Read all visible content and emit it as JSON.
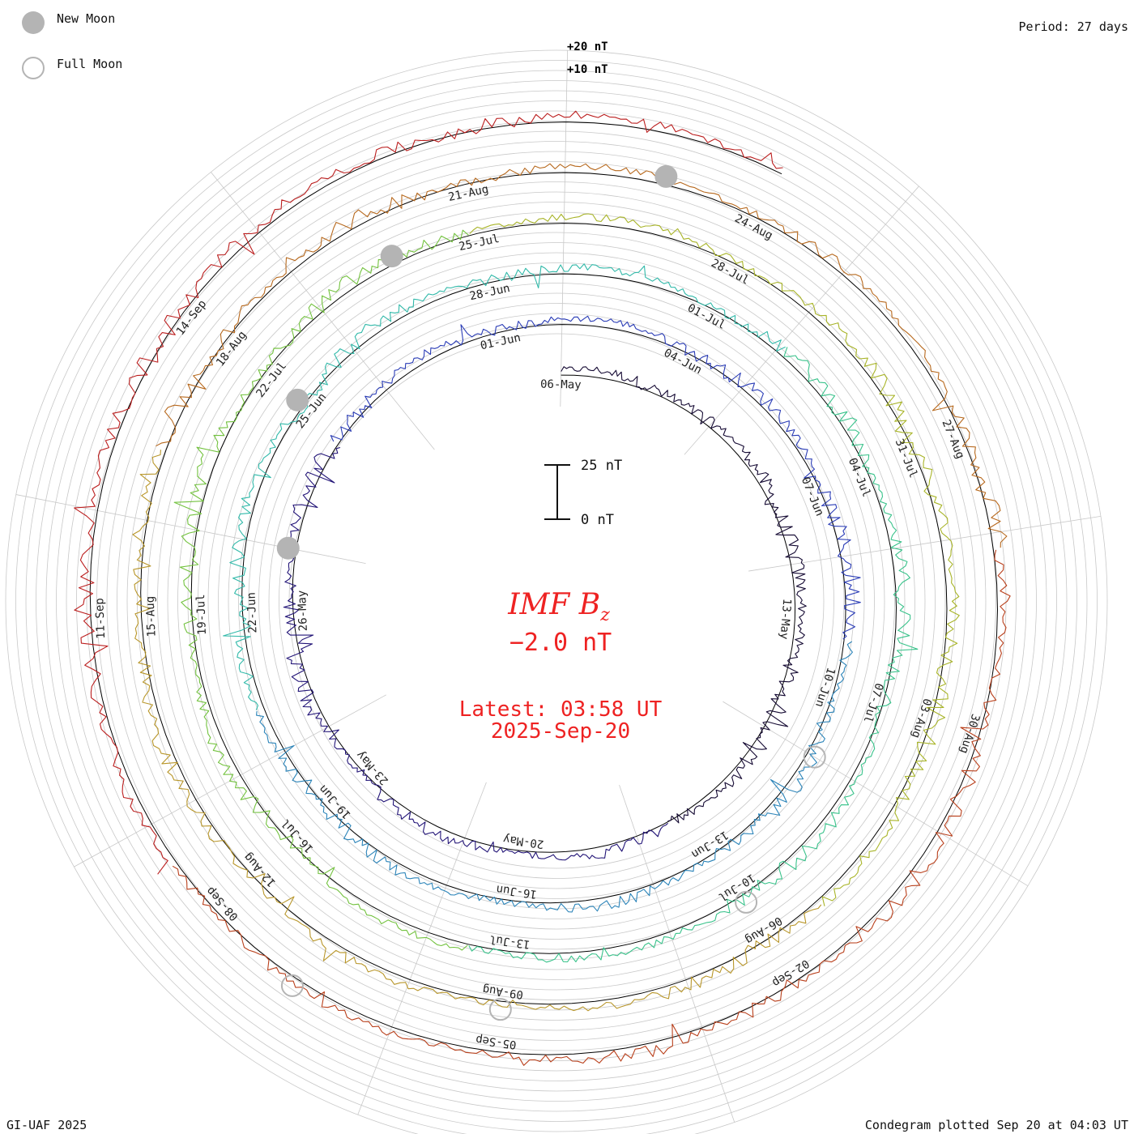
{
  "legend": {
    "new_moon_label": "New Moon",
    "full_moon_label": "Full Moon",
    "period_label": "Period: 27 days"
  },
  "scale": {
    "ring_labels": [
      "+20 nT",
      "+10 nT"
    ],
    "bar_top_label": "25 nT",
    "bar_bottom_label": "0 nT"
  },
  "center": {
    "title_main": "IMF B",
    "title_sub": "z",
    "value": "−2.0 nT",
    "latest": "Latest: 03:58 UT",
    "date": "2025-Sep-20"
  },
  "footer": {
    "credit": "GI-UAF 2025",
    "plotted": "Condegram plotted Sep 20 at 04:03 UT"
  },
  "colors": {
    "red": "#ee2222",
    "moon_gray": "#b4b4b4",
    "grid": "#c8c8c8",
    "rotations": [
      "#150a33",
      "#221477",
      "#2a3cb6",
      "#2b84b9",
      "#31b9a9",
      "#38c28a",
      "#73c23f",
      "#a8b428",
      "#b8962a",
      "#b7691e",
      "#b9401c",
      "#bb1e1e"
    ]
  },
  "chart_data": {
    "type": "spiral condegram",
    "title": "IMF Bz",
    "units": "nT",
    "period_days": 27,
    "current_value_nT": -2.0,
    "latest_time": "03:58 UT",
    "latest_date": "2025-Sep-20",
    "rotations": [
      {
        "start": "06-May",
        "color": "#150a33",
        "dates": [
          "06-May",
          "13-May",
          "20-May",
          "23-May",
          "26-May"
        ]
      },
      {
        "start": "01-Jun",
        "color": "#2a3cb6",
        "dates": [
          "01-Jun",
          "04-Jun",
          "07-Jun",
          "10-Jun",
          "13-Jun",
          "16-Jun",
          "19-Jun",
          "22-Jun",
          "25-Jun",
          "28-Jun"
        ]
      },
      {
        "start": "01-Jul",
        "color": "#31b9a9",
        "dates": [
          "01-Jul",
          "04-Jul",
          "07-Jul",
          "10-Jul",
          "13-Jul",
          "16-Jul",
          "19-Jul",
          "22-Jul",
          "25-Jul",
          "28-Jul"
        ]
      },
      {
        "start": "31-Jul",
        "color": "#73c23f",
        "dates": [
          "31-Jul",
          "03-Aug",
          "06-Aug",
          "09-Aug",
          "12-Aug",
          "15-Aug",
          "18-Aug",
          "21-Aug",
          "24-Aug",
          "27-Aug"
        ]
      },
      {
        "start": "30-Aug",
        "color": "#b7691e",
        "dates": [
          "30-Aug",
          "02-Sep",
          "05-Sep",
          "08-Sep",
          "11-Sep",
          "14-Sep"
        ]
      }
    ],
    "new_moons": [
      "2025-May-27",
      "2025-Jun-25",
      "2025-Jul-24",
      "2025-Aug-23"
    ],
    "full_moons": [
      "2025-Jun-11",
      "2025-Jul-10",
      "2025-Aug-09",
      "2025-Sep-07"
    ]
  }
}
